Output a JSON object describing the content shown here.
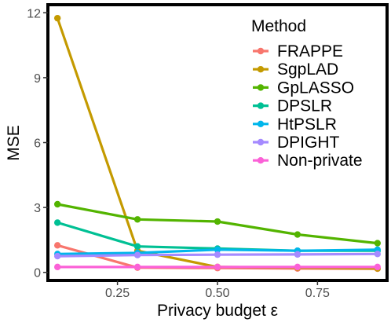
{
  "chart_data": {
    "type": "line",
    "xlabel": "Privacy budget  ε",
    "ylabel": "MSE",
    "xlim": [
      0.08,
      0.92
    ],
    "ylim": [
      -0.3,
      12.3
    ],
    "x_ticks": [
      0.25,
      0.5,
      0.75
    ],
    "x_tick_labels": [
      "0.25",
      "0.50",
      "0.75"
    ],
    "y_ticks": [
      0,
      3,
      6,
      9,
      12
    ],
    "y_tick_labels": [
      "0",
      "3",
      "6",
      "9",
      "12"
    ],
    "grid": false,
    "legend": {
      "title": "Method",
      "position": "top-right"
    },
    "x": [
      0.1,
      0.3,
      0.5,
      0.7,
      0.9
    ],
    "series": [
      {
        "name": "FRAPPE",
        "color": "#F8766D",
        "values": [
          1.25,
          0.22,
          0.2,
          0.18,
          0.17
        ]
      },
      {
        "name": "SgpLAD",
        "color": "#C49A00",
        "values": [
          11.75,
          1.0,
          0.25,
          0.22,
          0.18
        ]
      },
      {
        "name": "GpLASSO",
        "color": "#53B400",
        "values": [
          3.15,
          2.45,
          2.35,
          1.75,
          1.35
        ]
      },
      {
        "name": "DPSLR",
        "color": "#00C094",
        "values": [
          2.3,
          1.2,
          1.1,
          1.0,
          1.0
        ]
      },
      {
        "name": "HtPSLR",
        "color": "#00B6EB",
        "values": [
          0.85,
          0.9,
          1.05,
          1.0,
          1.05
        ]
      },
      {
        "name": "DPIGHT",
        "color": "#A58AFF",
        "values": [
          0.75,
          0.8,
          0.82,
          0.83,
          0.85
        ]
      },
      {
        "name": "Non-private",
        "color": "#FB61D7",
        "values": [
          0.25,
          0.25,
          0.25,
          0.25,
          0.25
        ]
      }
    ]
  }
}
